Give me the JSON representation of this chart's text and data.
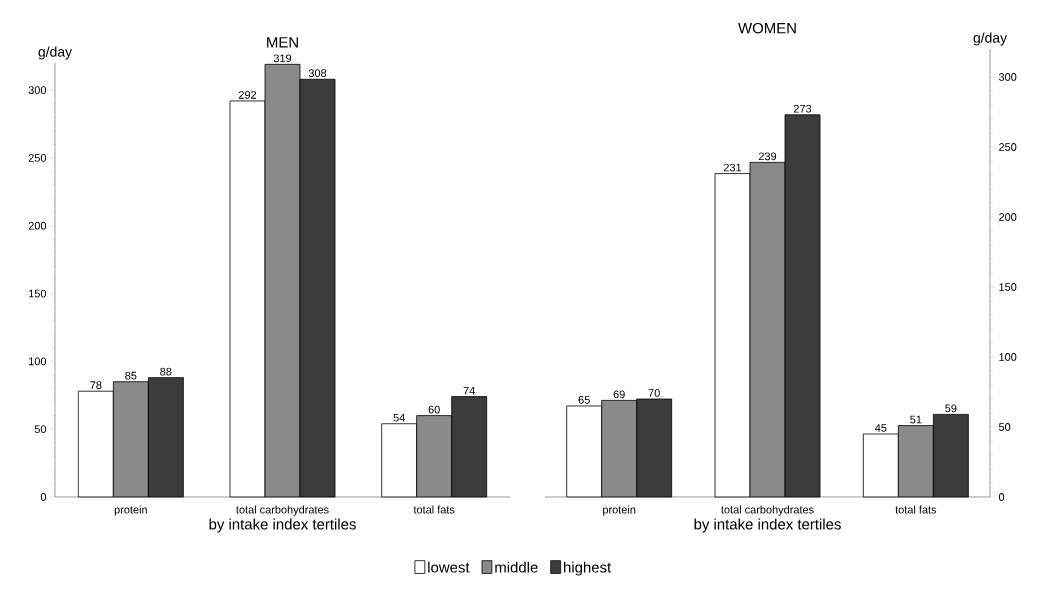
{
  "chart_data": [
    {
      "type": "bar",
      "title": "MEN",
      "xlabel": "by intake index tertiles",
      "ylabel": "g/day",
      "categories": [
        "protein",
        "total carbohydrates",
        "total fats"
      ],
      "series": [
        {
          "color": "#ffffff",
          "values": [
            78,
            292,
            54
          ]
        },
        {
          "color": "#8a8a8a",
          "values": [
            85,
            319,
            60
          ]
        },
        {
          "color": "#3c3c3c",
          "values": [
            88,
            308,
            74
          ]
        }
      ],
      "ylim": [
        0,
        320
      ],
      "yticks": [
        0,
        50,
        100,
        150,
        200,
        250,
        300
      ],
      "data_labels": true
    },
    {
      "type": "bar",
      "title": "WOMEN",
      "xlabel": "by intake index tertiles",
      "ylabel": "g/day",
      "categories": [
        "protein",
        "total carbohydrates",
        "total fats"
      ],
      "series": [
        {
          "name": "lowest",
          "color": "#ffffff",
          "values": [
            65,
            231,
            45
          ]
        },
        {
          "name": "middle",
          "color": "#8a8a8a",
          "values": [
            69,
            239,
            51
          ]
        },
        {
          "name": "highest",
          "color": "#3c3c3c",
          "values": [
            70,
            273,
            59
          ]
        }
      ],
      "ylim": [
        0,
        320
      ],
      "yticks": [
        0,
        50,
        100,
        150,
        200,
        250,
        300
      ],
      "data_labels": true,
      "legend": "bottom"
    }
  ]
}
